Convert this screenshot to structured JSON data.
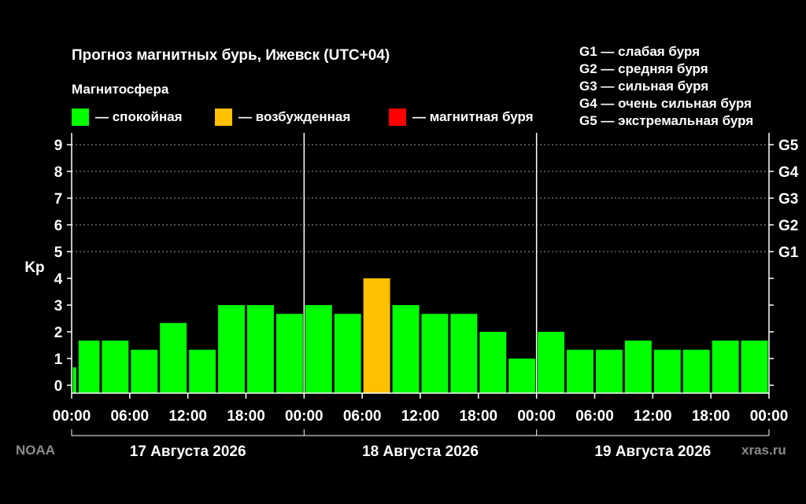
{
  "title": "Прогноз магнитных бурь, Ижевск (UTC+04)",
  "magnetosphere_title": "Магнитосфера",
  "legend": [
    {
      "label": "— спокойная",
      "color": "#00ff00"
    },
    {
      "label": "— возбужденная",
      "color": "#ffc000"
    },
    {
      "label": "— магнитная буря",
      "color": "#ff0000"
    }
  ],
  "g_scale": [
    "G1 — слабая буря",
    "G2 — средняя буря",
    "G3 — сильная буря",
    "G4 — очень сильная буря",
    "G5 — экстремальная буря"
  ],
  "source_left": "NOAA",
  "source_right": "xras.ru",
  "chart_data": {
    "type": "bar",
    "ylabel": "Kp",
    "ylim": [
      0,
      9
    ],
    "y_ticks": [
      "0",
      "1",
      "2",
      "3",
      "4",
      "5",
      "6",
      "7",
      "8",
      "9"
    ],
    "right_ticks": [
      {
        "kp": 5,
        "label": "G1"
      },
      {
        "kp": 6,
        "label": "G2"
      },
      {
        "kp": 7,
        "label": "G3"
      },
      {
        "kp": 8,
        "label": "G4"
      },
      {
        "kp": 9,
        "label": "G5"
      }
    ],
    "x_tick_labels": [
      "00:00",
      "06:00",
      "12:00",
      "18:00",
      "00:00",
      "06:00",
      "12:00",
      "18:00",
      "00:00",
      "06:00",
      "12:00",
      "18:00",
      "00:00"
    ],
    "hours_total": 72,
    "day_labels": [
      "17 Августа 2026",
      "18 Августа 2026",
      "19 Августа 2026"
    ],
    "grid": "dashed horizontal at Kp 5-9",
    "bars": [
      {
        "start_h": 0,
        "end_h": 0.6,
        "kp": 0.67,
        "level": "quiet"
      },
      {
        "start_h": 0.6,
        "end_h": 3,
        "kp": 1.67,
        "level": "quiet"
      },
      {
        "start_h": 3,
        "end_h": 6,
        "kp": 1.67,
        "level": "quiet"
      },
      {
        "start_h": 6,
        "end_h": 9,
        "kp": 1.33,
        "level": "quiet"
      },
      {
        "start_h": 9,
        "end_h": 12,
        "kp": 2.33,
        "level": "quiet"
      },
      {
        "start_h": 12,
        "end_h": 15,
        "kp": 1.33,
        "level": "quiet"
      },
      {
        "start_h": 15,
        "end_h": 18,
        "kp": 3.0,
        "level": "quiet"
      },
      {
        "start_h": 18,
        "end_h": 21,
        "kp": 3.0,
        "level": "quiet"
      },
      {
        "start_h": 21,
        "end_h": 24,
        "kp": 2.67,
        "level": "quiet"
      },
      {
        "start_h": 24,
        "end_h": 27,
        "kp": 3.0,
        "level": "quiet"
      },
      {
        "start_h": 27,
        "end_h": 30,
        "kp": 2.67,
        "level": "quiet"
      },
      {
        "start_h": 30,
        "end_h": 33,
        "kp": 4.0,
        "level": "active"
      },
      {
        "start_h": 33,
        "end_h": 36,
        "kp": 3.0,
        "level": "quiet"
      },
      {
        "start_h": 36,
        "end_h": 39,
        "kp": 2.67,
        "level": "quiet"
      },
      {
        "start_h": 39,
        "end_h": 42,
        "kp": 2.67,
        "level": "quiet"
      },
      {
        "start_h": 42,
        "end_h": 45,
        "kp": 2.0,
        "level": "quiet"
      },
      {
        "start_h": 45,
        "end_h": 48,
        "kp": 1.0,
        "level": "quiet"
      },
      {
        "start_h": 48,
        "end_h": 51,
        "kp": 2.0,
        "level": "quiet"
      },
      {
        "start_h": 51,
        "end_h": 54,
        "kp": 1.33,
        "level": "quiet"
      },
      {
        "start_h": 54,
        "end_h": 57,
        "kp": 1.33,
        "level": "quiet"
      },
      {
        "start_h": 57,
        "end_h": 60,
        "kp": 1.67,
        "level": "quiet"
      },
      {
        "start_h": 60,
        "end_h": 63,
        "kp": 1.33,
        "level": "quiet"
      },
      {
        "start_h": 63,
        "end_h": 66,
        "kp": 1.33,
        "level": "quiet"
      },
      {
        "start_h": 66,
        "end_h": 69,
        "kp": 1.67,
        "level": "quiet"
      },
      {
        "start_h": 69,
        "end_h": 72,
        "kp": 1.67,
        "level": "quiet"
      }
    ],
    "level_colors": {
      "quiet": "#00ff00",
      "active": "#ffc000",
      "storm": "#ff0000"
    }
  }
}
